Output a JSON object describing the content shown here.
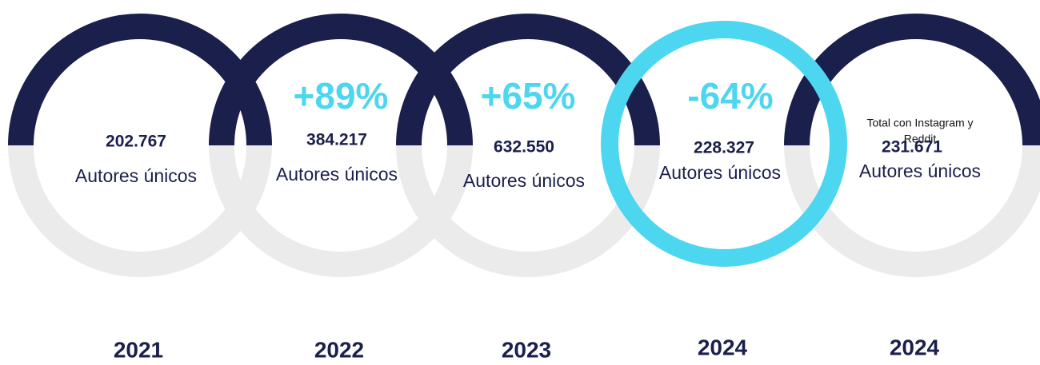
{
  "items": [
    {
      "value": "202.767",
      "label": "Autores únicos",
      "year": "2021"
    },
    {
      "change": "+89%",
      "value": "384.217",
      "label": "Autores únicos",
      "year": "2022"
    },
    {
      "change": "+65%",
      "value": "632.550",
      "label": "Autores únicos",
      "year": "2023"
    },
    {
      "change": "-64%",
      "value": "228.327",
      "label": "Autores únicos",
      "year": "2024"
    },
    {
      "note": [
        "Total con Instagram y",
        "Reddit"
      ],
      "value": "231.671",
      "label": "Autores únicos",
      "year": "2024"
    }
  ]
}
